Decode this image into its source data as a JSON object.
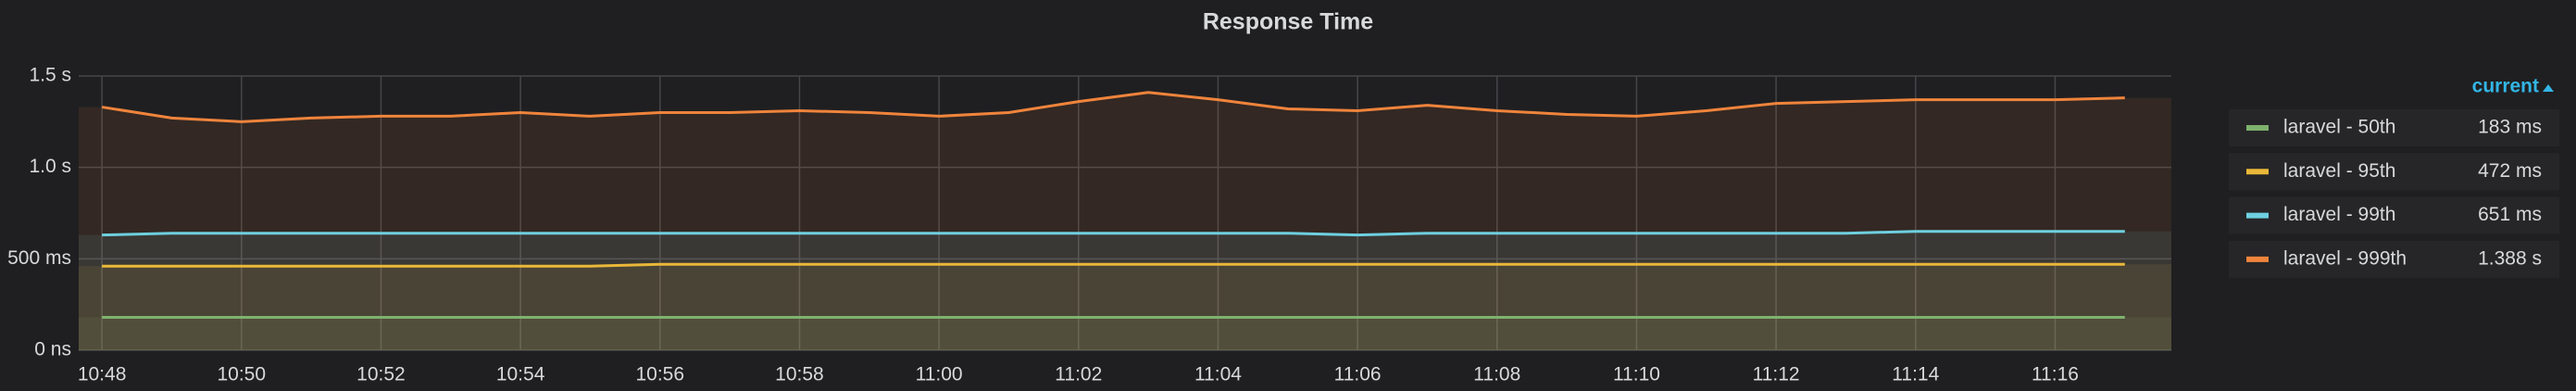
{
  "chart_data": {
    "type": "line",
    "title": "Response Time",
    "x": [
      "10:48",
      "10:49",
      "10:50",
      "10:51",
      "10:52",
      "10:53",
      "10:54",
      "10:55",
      "10:56",
      "10:57",
      "10:58",
      "10:59",
      "11:00",
      "11:01",
      "11:02",
      "11:03",
      "11:04",
      "11:05",
      "11:06",
      "11:07",
      "11:08",
      "11:09",
      "11:10",
      "11:11",
      "11:12",
      "11:13",
      "11:14",
      "11:15",
      "11:16",
      "11:17"
    ],
    "xlim": [
      "10:47:40",
      "11:17:40"
    ],
    "xticks": [
      "10:48",
      "10:50",
      "10:52",
      "10:54",
      "10:56",
      "10:58",
      "11:00",
      "11:02",
      "11:04",
      "11:06",
      "11:08",
      "11:10",
      "11:12",
      "11:14",
      "11:16"
    ],
    "ylim": [
      0,
      1.5
    ],
    "yticks": [
      {
        "value": 0,
        "label": "0 ns"
      },
      {
        "value": 0.5,
        "label": "500 ms"
      },
      {
        "value": 1.0,
        "label": "1.0 s"
      },
      {
        "value": 1.5,
        "label": "1.5 s"
      }
    ],
    "grid": true,
    "legend_header": "current",
    "series": [
      {
        "name": "laravel - 50th",
        "color": "#7eb26d",
        "current": {
          "value": 0.183,
          "label": "183 ms"
        },
        "values": [
          0.18,
          0.18,
          0.18,
          0.18,
          0.18,
          0.18,
          0.18,
          0.18,
          0.18,
          0.18,
          0.18,
          0.18,
          0.18,
          0.18,
          0.18,
          0.18,
          0.18,
          0.18,
          0.18,
          0.18,
          0.18,
          0.18,
          0.18,
          0.18,
          0.18,
          0.18,
          0.18,
          0.18,
          0.18,
          0.18
        ]
      },
      {
        "name": "laravel - 95th",
        "color": "#eab839",
        "current": {
          "value": 0.472,
          "label": "472 ms"
        },
        "values": [
          0.46,
          0.46,
          0.46,
          0.46,
          0.46,
          0.46,
          0.46,
          0.46,
          0.47,
          0.47,
          0.47,
          0.47,
          0.47,
          0.47,
          0.47,
          0.47,
          0.47,
          0.47,
          0.47,
          0.47,
          0.47,
          0.47,
          0.47,
          0.47,
          0.47,
          0.47,
          0.47,
          0.47,
          0.47,
          0.47
        ]
      },
      {
        "name": "laravel - 99th",
        "color": "#6ed0e0",
        "current": {
          "value": 0.651,
          "label": "651 ms"
        },
        "values": [
          0.63,
          0.64,
          0.64,
          0.64,
          0.64,
          0.64,
          0.64,
          0.64,
          0.64,
          0.64,
          0.64,
          0.64,
          0.64,
          0.64,
          0.64,
          0.64,
          0.64,
          0.64,
          0.63,
          0.64,
          0.64,
          0.64,
          0.64,
          0.64,
          0.64,
          0.64,
          0.65,
          0.65,
          0.65,
          0.65
        ]
      },
      {
        "name": "laravel - 999th",
        "color": "#ef843c",
        "current": {
          "value": 1.388,
          "label": "1.388 s"
        },
        "values": [
          1.33,
          1.27,
          1.25,
          1.27,
          1.28,
          1.28,
          1.3,
          1.28,
          1.3,
          1.3,
          1.31,
          1.3,
          1.28,
          1.3,
          1.36,
          1.41,
          1.37,
          1.32,
          1.31,
          1.34,
          1.31,
          1.29,
          1.28,
          1.31,
          1.35,
          1.36,
          1.37,
          1.37,
          1.37,
          1.38
        ]
      }
    ]
  }
}
